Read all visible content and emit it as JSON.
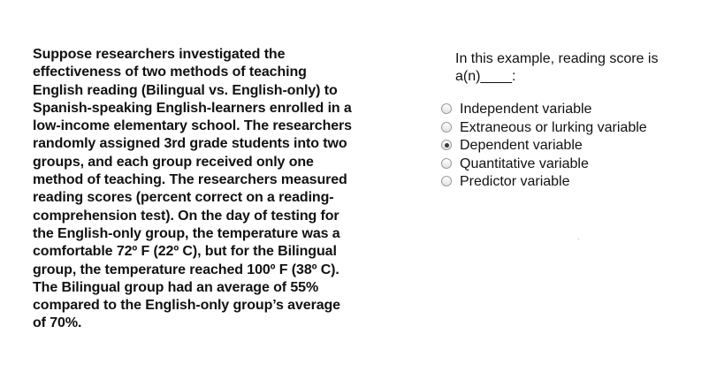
{
  "passage": {
    "lines": [
      "Suppose researchers investigated the",
      "effectiveness of two methods of teaching",
      "English reading (Bilingual vs. English-only) to",
      "Spanish-speaking English-learners enrolled in a",
      "low-income elementary school. The researchers",
      "randomly assigned 3rd grade students into two",
      "groups, and each group received only one",
      "method of teaching. The researchers measured",
      "reading scores (percent correct on a reading-",
      "comprehension test). On the day of testing for",
      "the English-only group, the temperature was a",
      "comfortable 72º F (22º C), but for the Bilingual",
      "group, the temperature reached 100º F (38º C).",
      "The Bilingual group had an average of 55%",
      "compared to the English-only group’s average",
      "of 70%."
    ]
  },
  "question": {
    "lines": [
      "In this example, reading score is",
      "a(n)____:"
    ],
    "options": [
      {
        "label": "Independent variable",
        "checked": false
      },
      {
        "label": "Extraneous or lurking variable",
        "checked": false
      },
      {
        "label": "Dependent variable",
        "checked": true
      },
      {
        "label": "Quantitative variable",
        "checked": false
      },
      {
        "label": "Predictor variable",
        "checked": false
      }
    ]
  }
}
